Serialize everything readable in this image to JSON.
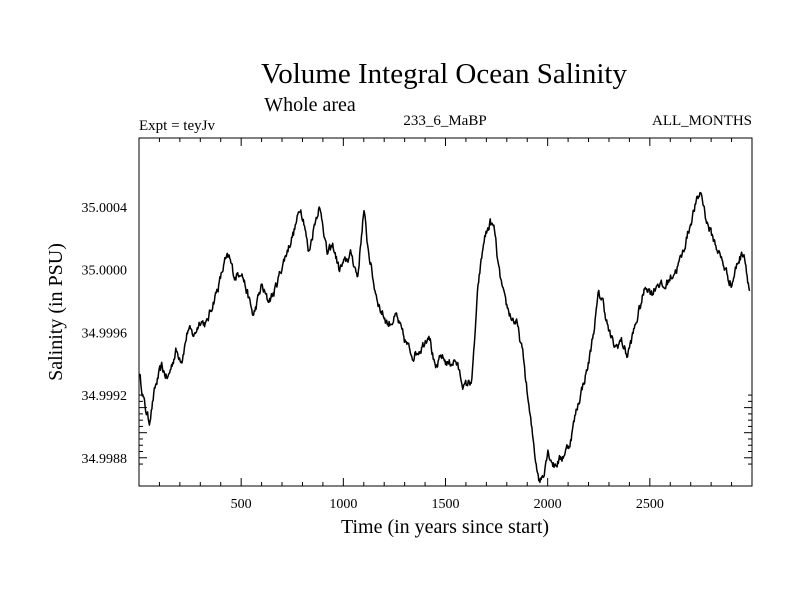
{
  "chart_data": {
    "type": "line",
    "title": "Volume Integral Ocean Salinity",
    "subtitle": "Whole area",
    "left_label": "Expt = teyJv",
    "center_label": "233_6_MaBP",
    "right_label": "ALL_MONTHS",
    "xlabel": "Time (in years since start)",
    "ylabel": "Salinity (in PSU)",
    "xlim": [
      0,
      3000
    ],
    "ylim": [
      34.99862,
      35.00084
    ],
    "x_ticks": [
      500,
      1000,
      1500,
      2000,
      2500
    ],
    "x_tick_labels": [
      "500",
      "1000",
      "1500",
      "2000",
      "2500"
    ],
    "y_ticks": [
      34.9988,
      34.9992,
      34.9996,
      35.0,
      35.0004
    ],
    "y_tick_labels": [
      "34.9988",
      "34.9992",
      "34.9996",
      "35.0000",
      "35.0004"
    ],
    "series": [
      {
        "name": "Salinity",
        "color": "#000000",
        "x": [
          0,
          30,
          50,
          80,
          110,
          140,
          180,
          210,
          240,
          270,
          300,
          330,
          360,
          390,
          420,
          440,
          470,
          500,
          530,
          560,
          600,
          630,
          660,
          690,
          720,
          760,
          790,
          810,
          830,
          860,
          880,
          900,
          920,
          950,
          980,
          1010,
          1040,
          1070,
          1100,
          1120,
          1150,
          1180,
          1220,
          1260,
          1300,
          1340,
          1380,
          1420,
          1450,
          1480,
          1510,
          1550,
          1590,
          1630,
          1660,
          1690,
          1720,
          1740,
          1760,
          1790,
          1820,
          1850,
          1880,
          1910,
          1940,
          1960,
          1980,
          2000,
          2030,
          2070,
          2110,
          2140,
          2170,
          2200,
          2230,
          2250,
          2270,
          2300,
          2330,
          2360,
          2390,
          2420,
          2450,
          2480,
          2510,
          2540,
          2570,
          2600,
          2630,
          2660,
          2690,
          2720,
          2750,
          2780,
          2810,
          2840,
          2870,
          2900,
          2930,
          2960,
          2990
        ],
        "values": [
          34.99935,
          34.99912,
          34.99903,
          34.99925,
          34.99938,
          34.9993,
          34.99948,
          34.99943,
          34.99962,
          34.99958,
          34.99968,
          34.99965,
          34.99978,
          34.9999,
          35.00005,
          35.00008,
          34.99995,
          35.0,
          34.99985,
          34.9997,
          34.9999,
          34.9998,
          34.99985,
          34.99998,
          35.0001,
          35.00025,
          35.0004,
          35.0003,
          35.0001,
          35.0003,
          35.0004,
          35.0003,
          35.0001,
          35.00015,
          35.0,
          35.00005,
          35.0001,
          34.99995,
          35.00038,
          35.00015,
          34.9999,
          34.99975,
          34.99965,
          34.9997,
          34.99955,
          34.99945,
          34.9995,
          34.9996,
          34.99935,
          34.99945,
          34.9994,
          34.99942,
          34.99925,
          34.9993,
          34.9999,
          35.0002,
          35.0003,
          35.00025,
          35.0,
          34.9998,
          34.9997,
          34.99965,
          34.99945,
          34.9991,
          34.9988,
          34.99865,
          34.9987,
          34.99885,
          34.99875,
          34.9988,
          34.9989,
          34.9991,
          34.99925,
          34.9994,
          34.99965,
          34.99985,
          34.9998,
          34.9996,
          34.9995,
          34.99955,
          34.99945,
          34.9996,
          34.99975,
          34.9999,
          34.99985,
          34.99992,
          34.99988,
          34.99995,
          35.0,
          35.0001,
          35.00025,
          35.0004,
          35.0005,
          35.0003,
          35.0002,
          35.0001,
          35.0,
          34.9999,
          35.00005,
          35.00012,
          34.99985
        ]
      }
    ]
  }
}
